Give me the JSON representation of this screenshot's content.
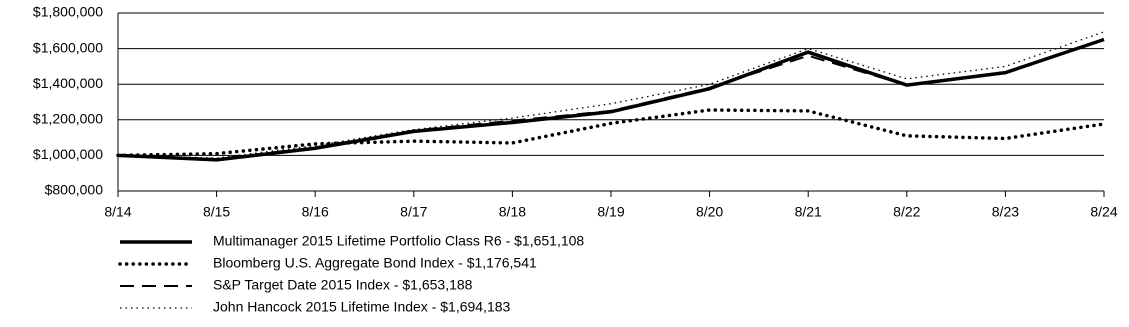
{
  "chart_data": {
    "type": "line",
    "categories": [
      "8/14",
      "8/15",
      "8/16",
      "8/17",
      "8/18",
      "8/19",
      "8/20",
      "8/21",
      "8/22",
      "8/23",
      "8/24"
    ],
    "series": [
      {
        "name": "Multimanager 2015 Lifetime Portfolio Class R6 - $1,651,108",
        "color": "#000000",
        "style": "solid",
        "values": [
          1000000,
          975000,
          1040000,
          1135000,
          1185000,
          1245000,
          1375000,
          1580000,
          1395000,
          1465000,
          1651108
        ]
      },
      {
        "name": "Bloomberg U.S. Aggregate Bond Index - $1,176,541",
        "color": "#000000",
        "style": "dotted",
        "values": [
          1000000,
          1010000,
          1065000,
          1080000,
          1070000,
          1180000,
          1255000,
          1250000,
          1110000,
          1095000,
          1176541
        ]
      },
      {
        "name": "S&P Target Date 2015 Index - $1,653,188",
        "color": "#000000",
        "style": "dashed",
        "values": [
          1000000,
          980000,
          1045000,
          1140000,
          1195000,
          1250000,
          1380000,
          1560000,
          1395000,
          1465000,
          1653188
        ]
      },
      {
        "name": "John Hancock 2015 Lifetime Index - $1,694,183",
        "color": "#000000",
        "style": "fine-dotted",
        "values": [
          1000000,
          985000,
          1055000,
          1145000,
          1210000,
          1290000,
          1400000,
          1600000,
          1430000,
          1500000,
          1694183
        ]
      }
    ],
    "ylim": [
      800000,
      1800000
    ],
    "yticks": [
      {
        "value": 800000,
        "label": "$800,000"
      },
      {
        "value": 1000000,
        "label": "$1,000,000"
      },
      {
        "value": 1200000,
        "label": "$1,200,000"
      },
      {
        "value": 1400000,
        "label": "$1,400,000"
      },
      {
        "value": 1600000,
        "label": "$1,600,000"
      },
      {
        "value": 1800000,
        "label": "$1,800,000"
      }
    ],
    "grid": true
  }
}
